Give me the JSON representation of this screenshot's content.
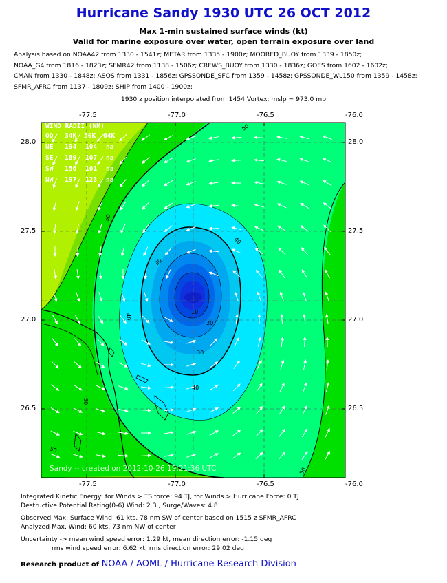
{
  "header": {
    "title": "Hurricane Sandy 1930 UTC 26 OCT 2012",
    "subtitle1": "Max 1-min sustained surface winds (kt)",
    "subtitle2": "Valid for marine exposure over water, open terrain exposure over land"
  },
  "analysis_lines": [
    "Analysis based on NOAA42 from 1330 - 1541z; METAR from 1335 - 1900z; MOORED_BUOY from 1339 - 1850z;",
    "NOAA_G4 from 1816 - 1823z; SFMR42 from 1138 - 1506z; CREWS_BUOY from 1330 - 1836z; GOES from 1602 - 1602z;",
    "CMAN from 1330 - 1848z; ASOS from 1331 - 1856z; GPSSONDE_SFC from 1359 - 1458z; GPSSONDE_WL150 from 1359 - 1458z;",
    "SFMR_AFRC from 1137 - 1809z; SHIP from 1400 - 1900z;"
  ],
  "position_text": "1930 z position interpolated from 1454 Vortex; mslp = 973.0 mb",
  "map": {
    "lon_labels": [
      "-77.5",
      "-77.0",
      "-76.5",
      "-76.0"
    ],
    "lat_labels": [
      "28.0",
      "27.5",
      "27.0",
      "26.5"
    ],
    "contour_labels": [
      "10",
      "20",
      "30",
      "30",
      "40",
      "40",
      "40",
      "50",
      "50",
      "50",
      "50",
      "50"
    ],
    "credit": "Sandy -- created on 2012-10-26 19:21:36 UTC",
    "wind_radii": {
      "title": "WIND RADII (NM)",
      "header": [
        "QQ",
        "34K",
        "50K",
        "64K"
      ],
      "rows": [
        [
          "NE",
          "194",
          "104",
          "na"
        ],
        [
          "SE",
          "189",
          "107",
          "na"
        ],
        [
          "SW",
          "156",
          "101",
          "na"
        ],
        [
          "NW",
          "197",
          "123",
          "na"
        ]
      ]
    },
    "colors": {
      "lt40": "#00e8ff",
      "c40_50": "#00ff78",
      "c50_60": "#00e000",
      "c60_70": "#78e000",
      "c70_80": "#b0f000",
      "core": "#1020e0"
    }
  },
  "bottom": {
    "ike": "Integrated Kinetic Energy: for Winds > TS force: 94 TJ, for Winds > Hurricane Force: 0 TJ",
    "dpr": "Destructive Potential Rating(0-6)  Wind: 2.3 , Surge/Waves: 4.8",
    "obs": "Observed Max. Surface Wind: 61 kts, 78 nm SW of center based on 1515 z SFMR_AFRC",
    "analyzed": "Analyzed Max. Wind: 60 kts, 73 nm  NW of center",
    "uncert1": "Uncertainty -> mean wind speed error: 1.29 kt, mean direction error:  -1.15 deg",
    "uncert2": "rms wind speed error: 6.62 kt, rms direction error: 29.02 deg",
    "research_prefix": "Research product of",
    "research_links": "NOAA / AOML / Hurricane Research Division"
  }
}
